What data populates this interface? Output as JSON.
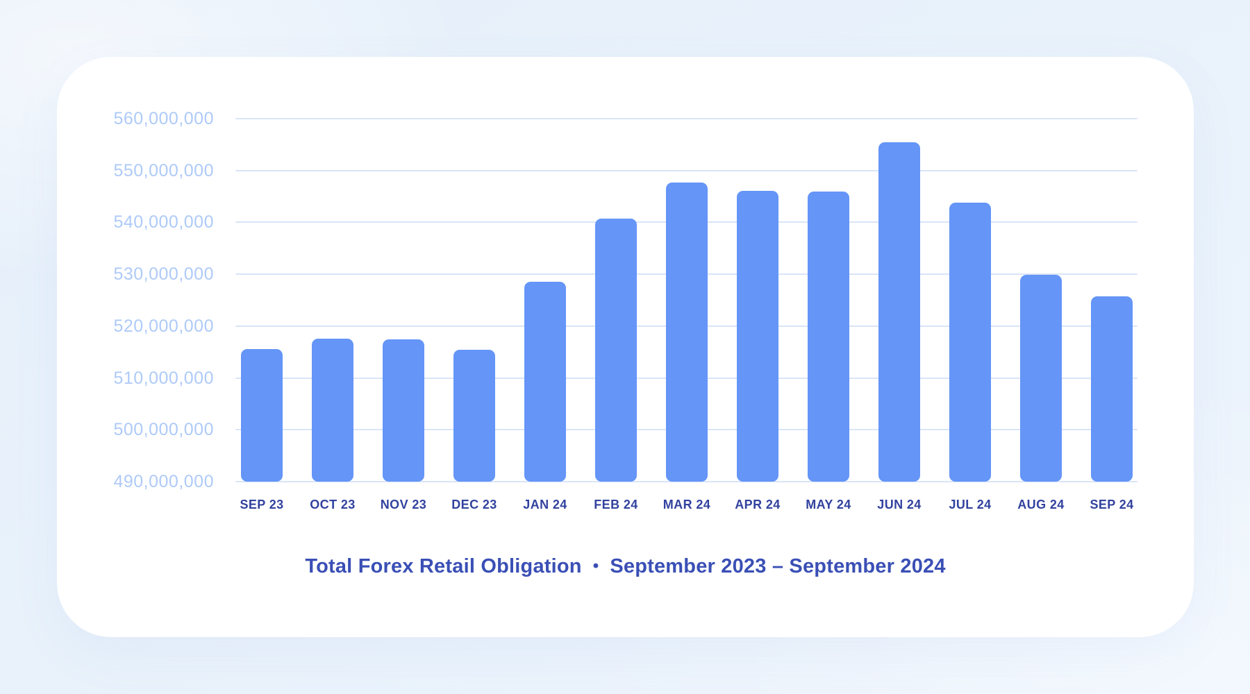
{
  "colors": {
    "page_background": "#e9f2fb",
    "card_background": "#ffffff",
    "bar": "#6495f7",
    "gridline": "#d9e4f8",
    "y_tick_label": "#aecaf8",
    "x_tick_label": "#32429e",
    "title": "#3a4fb5"
  },
  "chart_data": {
    "type": "bar",
    "title": "Total Forex Retail Obligation • September 2023 – September 2024",
    "title_main": "Total Forex Retail Obligation",
    "title_separator": "•",
    "title_period": "September 2023 – September 2024",
    "xlabel": "",
    "ylabel": "",
    "ylim": [
      490000000,
      560000000
    ],
    "ytick_interval": 10000000,
    "grid": "horizontal",
    "legend": "none",
    "categories": [
      "SEP 23",
      "OCT 23",
      "NOV 23",
      "DEC 23",
      "JAN 24",
      "FEB 24",
      "MAR 24",
      "APR 24",
      "MAY 24",
      "JUN 24",
      "JUL 24",
      "AUG 24",
      "SEP 24"
    ],
    "values": [
      515500000,
      517600000,
      517400000,
      515400000,
      528500000,
      540700000,
      547700000,
      546100000,
      546000000,
      555500000,
      543800000,
      529900000,
      525700000
    ],
    "y_ticks": [
      {
        "value": 560000000,
        "label": "560,000,000"
      },
      {
        "value": 550000000,
        "label": "550,000,000"
      },
      {
        "value": 540000000,
        "label": "540,000,000"
      },
      {
        "value": 530000000,
        "label": "530,000,000"
      },
      {
        "value": 520000000,
        "label": "520,000,000"
      },
      {
        "value": 510000000,
        "label": "510,000,000"
      },
      {
        "value": 500000000,
        "label": "500,000,000"
      },
      {
        "value": 490000000,
        "label": "490,000,000"
      }
    ]
  }
}
